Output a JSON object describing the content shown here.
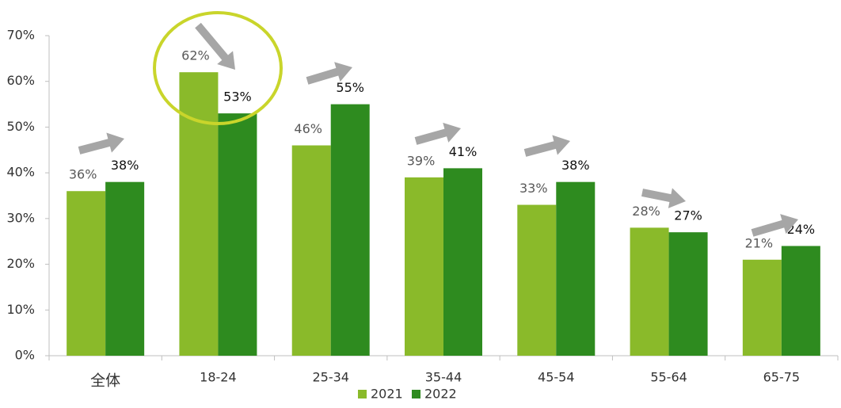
{
  "chart_data": {
    "type": "bar",
    "categories": [
      "全体",
      "18-24",
      "25-34",
      "35-44",
      "45-54",
      "55-64",
      "65-75"
    ],
    "series": [
      {
        "name": "2021",
        "color": "#8aba2a",
        "values": [
          36,
          62,
          46,
          39,
          33,
          28,
          21
        ],
        "value_labels": [
          "36%",
          "62%",
          "46%",
          "39%",
          "33%",
          "28%",
          "21%"
        ]
      },
      {
        "name": "2022",
        "color": "#2e8b1f",
        "values": [
          38,
          53,
          55,
          41,
          38,
          27,
          24
        ],
        "value_labels": [
          "38%",
          "53%",
          "55%",
          "41%",
          "38%",
          "27%",
          "24%"
        ]
      }
    ],
    "ylim": [
      0,
      70
    ],
    "yticks": [
      {
        "value": 0,
        "label": "0%"
      },
      {
        "value": 10,
        "label": "10%"
      },
      {
        "value": 20,
        "label": "20%"
      },
      {
        "value": 30,
        "label": "30%"
      },
      {
        "value": 40,
        "label": "40%"
      },
      {
        "value": 50,
        "label": "50%"
      },
      {
        "value": 60,
        "label": "60%"
      },
      {
        "value": 70,
        "label": "70%"
      }
    ],
    "legend": "bottom"
  }
}
